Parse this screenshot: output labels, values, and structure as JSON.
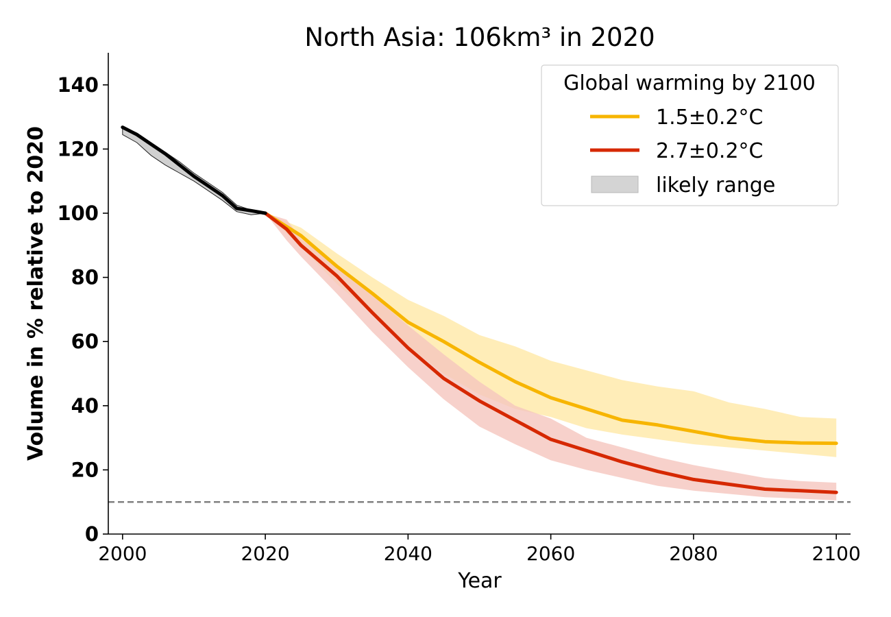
{
  "chart_data": {
    "type": "line",
    "title": "North Asia: 106km³ in 2020",
    "xlabel": "Year",
    "ylabel": "Volume in % relative to 2020",
    "xlim": [
      1998,
      2102
    ],
    "ylim": [
      0,
      150
    ],
    "xticks": [
      2000,
      2020,
      2040,
      2060,
      2080,
      2100
    ],
    "yticks": [
      0,
      20,
      40,
      60,
      80,
      100,
      120,
      140
    ],
    "grid": false,
    "reference_line": {
      "y": 10,
      "style": "dashed",
      "color": "#808080"
    },
    "legend": {
      "title": "Global warming by 2100",
      "placement": "top-right",
      "entries": [
        {
          "label": "1.5±0.2°C",
          "kind": "line",
          "color": "#f7b500"
        },
        {
          "label": "2.7±0.2°C",
          "kind": "line",
          "color": "#d62800"
        },
        {
          "label": "likely range",
          "kind": "patch",
          "color": "#d4d4d4"
        }
      ]
    },
    "series": [
      {
        "key": "historical",
        "color": "#000000",
        "x": [
          2000,
          2002,
          2004,
          2006,
          2008,
          2010,
          2012,
          2014,
          2016,
          2018,
          2020
        ],
        "y": [
          126.8,
          124.5,
          121.5,
          118.5,
          115,
          111.5,
          108.5,
          105.5,
          101.5,
          100.8,
          100
        ],
        "lower": [
          124.5,
          122,
          118,
          115,
          112.5,
          110,
          107,
          104,
          100.5,
          99.5,
          100
        ],
        "upper": [
          127,
          125,
          122,
          119,
          116,
          112.5,
          109.5,
          106.5,
          102.5,
          101,
          100
        ],
        "band_color": "#d0d0d0"
      },
      {
        "key": "1.5C",
        "name": "1.5±0.2°C",
        "color": "#f7b500",
        "x": [
          2020,
          2025,
          2030,
          2035,
          2040,
          2045,
          2050,
          2055,
          2060,
          2065,
          2070,
          2075,
          2080,
          2085,
          2090,
          2095,
          2100
        ],
        "y": [
          100,
          93,
          83.5,
          75,
          66,
          60,
          53.5,
          47.5,
          42.5,
          39,
          35.5,
          34,
          32,
          30,
          28.8,
          28.4,
          28.3
        ],
        "lower": [
          100,
          89.5,
          78,
          68.5,
          58.5,
          50,
          43.5,
          39,
          36.5,
          33,
          31,
          29.5,
          28,
          27,
          26,
          25,
          24
        ],
        "upper": [
          100,
          95.5,
          87.5,
          80,
          73,
          68,
          62,
          58.5,
          54,
          51,
          48,
          46,
          44.5,
          41,
          39,
          36.5,
          36
        ],
        "band_color": "#ffe9a6"
      },
      {
        "key": "2.7C",
        "name": "2.7±0.2°C",
        "color": "#d62800",
        "x": [
          2020,
          2023,
          2025,
          2030,
          2035,
          2040,
          2045,
          2050,
          2055,
          2060,
          2065,
          2070,
          2075,
          2080,
          2085,
          2090,
          2095,
          2100
        ],
        "y": [
          100,
          95,
          90,
          80.5,
          69,
          58,
          48.5,
          41.5,
          35.5,
          29.5,
          26,
          22.5,
          19.5,
          17,
          15.5,
          14,
          13.5,
          13
        ],
        "lower": [
          100,
          91.5,
          86.5,
          75,
          63,
          52,
          42,
          33.5,
          28,
          23,
          20,
          17.5,
          15,
          13.5,
          12.5,
          11.5,
          11,
          10.5
        ],
        "upper": [
          100,
          98,
          92,
          84,
          74.5,
          65,
          56,
          47.5,
          40,
          36,
          30,
          27,
          24,
          21.5,
          19.5,
          17.5,
          16.5,
          16
        ],
        "band_color": "#f5c6be"
      }
    ]
  }
}
